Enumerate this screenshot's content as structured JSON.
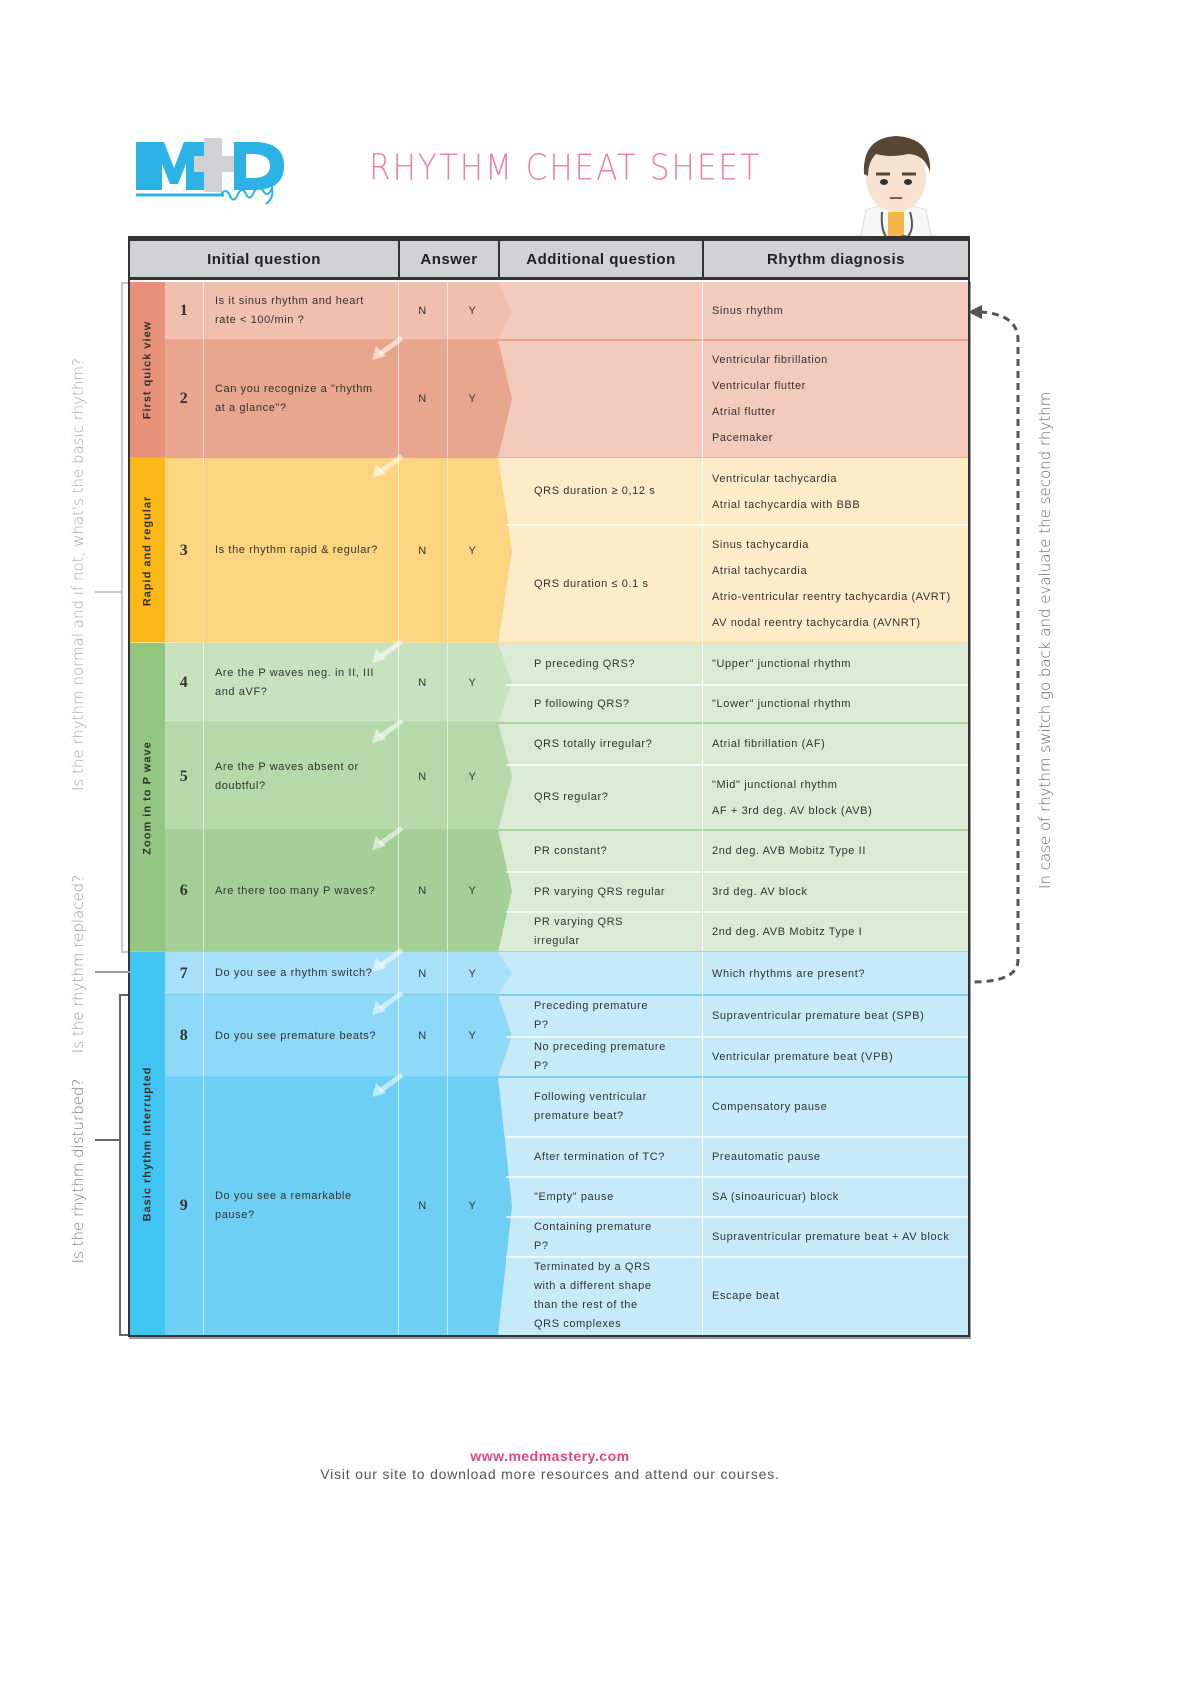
{
  "logo": {
    "text": "MED",
    "subtext": "mastery",
    "color": "#2bb3e6"
  },
  "title": "RHYTHM CHEAT SHEET",
  "header": {
    "initial_question": "Initial question",
    "answer": "Answer",
    "additional_question": "Additional question",
    "rhythm_diagnosis": "Rhythm diagnosis"
  },
  "side_labels": {
    "normal": "Is the rhythm normal and if not, what's the basic rhythm?",
    "replaced": "Is the rhythm replaced?",
    "disturbed": "Is the rhythm disturbed?",
    "switch": "In case of rhythm switch go back and evaluate the second rhythm"
  },
  "sections": [
    {
      "label": "First quick view",
      "colors": {
        "band": "#e8927a",
        "light": "#f2cbbd",
        "rows": [
          "#f0bfae",
          "#e9a68f"
        ],
        "line": "#eda48c"
      },
      "rows": [
        {
          "num": "1",
          "question": "Is it sinus rhythm and heart rate < 100/min ?",
          "n": "N",
          "y": "Y",
          "subrows": [
            {
              "additional": "",
              "diagnosis": [
                "Sinus rhythm"
              ]
            }
          ]
        },
        {
          "num": "2",
          "question": "Can you recognize a \"rhythm at a glance\"?",
          "n": "N",
          "y": "Y",
          "subrows": [
            {
              "additional": "",
              "diagnosis": [
                "Ventricular fibrillation",
                "Ventricular flutter",
                "Atrial flutter",
                "Pacemaker"
              ]
            }
          ]
        }
      ]
    },
    {
      "label": "Rapid and regular",
      "colors": {
        "band": "#fbb917",
        "light": "#feebc8",
        "rows": [
          "#fdd47f"
        ],
        "line": "#fde0a0"
      },
      "rows": [
        {
          "num": "3",
          "question": "Is the rhythm rapid & regular?",
          "n": "N",
          "y": "Y",
          "subrows": [
            {
              "additional": "QRS duration ≥ 0,12 s",
              "diagnosis": [
                "Ventricular tachycardia",
                "Atrial tachycardia with BBB"
              ]
            },
            {
              "additional": "QRS duration ≤ 0.1 s",
              "diagnosis": [
                "Sinus tachycardia",
                "Atrial tachycardia",
                "Atrio-ventricular reentry tachycardia (AVRT)",
                "AV nodal reentry tachycardia (AVNRT)"
              ]
            }
          ]
        }
      ]
    },
    {
      "label": "Zoom in to P wave",
      "colors": {
        "band": "#92c681",
        "light": "#dbead4",
        "rows": [
          "#c8e2c0",
          "#b5d9a8",
          "#a4cf96"
        ],
        "line": "#a8d49a"
      },
      "rows": [
        {
          "num": "4",
          "question": "Are the P waves neg. in II, III and aVF?",
          "n": "N",
          "y": "Y",
          "subrows": [
            {
              "additional": "P preceding QRS?",
              "diagnosis": [
                "\"Upper\" junctional rhythm"
              ]
            },
            {
              "additional": "P following QRS?",
              "diagnosis": [
                "\"Lower\" junctional rhythm"
              ]
            }
          ]
        },
        {
          "num": "5",
          "question": "Are the P waves absent or doubtful?",
          "n": "N",
          "y": "Y",
          "subrows": [
            {
              "additional": "QRS totally irregular?",
              "diagnosis": [
                "Atrial fibrillation (AF)"
              ]
            },
            {
              "additional": "QRS regular?",
              "diagnosis": [
                "\"Mid\" junctional rhythm",
                "AF + 3rd deg. AV block (AVB)"
              ]
            }
          ]
        },
        {
          "num": "6",
          "question": "Are there too many P waves?",
          "n": "N",
          "y": "Y",
          "subrows": [
            {
              "additional": "PR constant?",
              "diagnosis": [
                "2nd deg. AVB Mobitz Type II"
              ]
            },
            {
              "additional": "PR varying QRS regular",
              "diagnosis": [
                "3rd deg. AV block"
              ]
            },
            {
              "additional": "PR varying QRS irregular",
              "diagnosis": [
                "2nd deg. AVB Mobitz Type I"
              ]
            }
          ]
        }
      ]
    },
    {
      "label": "Basic rhythm interrupted",
      "colors": {
        "band": "#42c5f2",
        "light": "#c7eaf9",
        "rows": [
          "#a8e0f9",
          "#8ed9f7",
          "#6ecff5"
        ],
        "line": "#7ccff2"
      },
      "rows": [
        {
          "num": "7",
          "question": "Do you see a rhythm switch?",
          "n": "N",
          "y": "Y",
          "subrows": [
            {
              "additional": "",
              "diagnosis": [
                "Which rhythms are present?"
              ]
            }
          ]
        },
        {
          "num": "8",
          "question": "Do you see premature beats?",
          "n": "N",
          "y": "Y",
          "subrows": [
            {
              "additional": "Preceding premature P?",
              "diagnosis": [
                "Supraventricular premature beat (SPB)"
              ]
            },
            {
              "additional": "No preceding premature P?",
              "diagnosis": [
                "Ventricular premature beat (VPB)"
              ]
            }
          ]
        },
        {
          "num": "9",
          "question": "Do you see a remarkable pause?",
          "n": "N",
          "y": "Y",
          "subrows": [
            {
              "additional": "Following ventricular premature beat?",
              "diagnosis": [
                "Compensatory pause"
              ]
            },
            {
              "additional": "After termination of TC?",
              "diagnosis": [
                "Preautomatic pause"
              ]
            },
            {
              "additional": "\"Empty\" pause",
              "diagnosis": [
                "SA (sinoauricuar) block"
              ]
            },
            {
              "additional": "Containing premature P?",
              "diagnosis": [
                "Supraventricular premature beat + AV block"
              ]
            },
            {
              "additional": "Terminated by a QRS with a different shape than the rest of the QRS complexes",
              "diagnosis": [
                "Escape beat"
              ]
            }
          ]
        }
      ]
    }
  ],
  "footer": {
    "url": "www.medmastery.com",
    "text": "Visit our site to download more resources and attend our courses."
  }
}
